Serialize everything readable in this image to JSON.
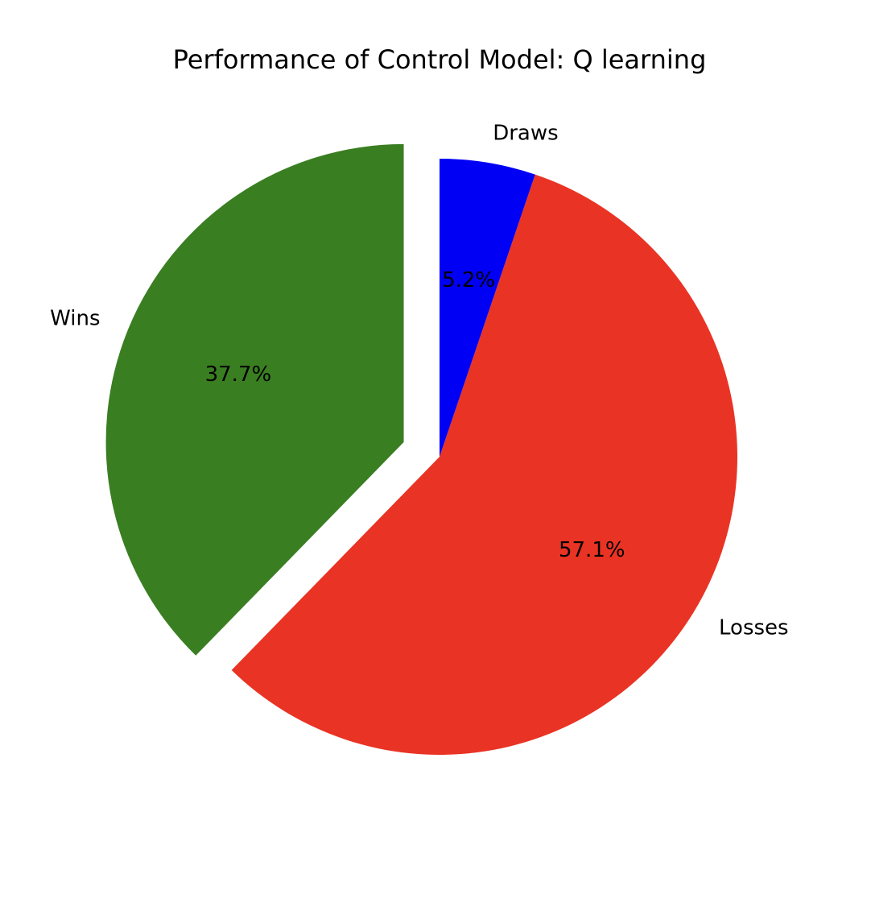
{
  "chart_data": {
    "type": "pie",
    "title": "Performance of Control Model: Q learning",
    "start_angle_deg": 90,
    "direction": "counterclockwise",
    "slices": [
      {
        "label": "Wins",
        "value": 37.7,
        "pct_label": "37.7%",
        "color": "#3a7e22",
        "explode": true
      },
      {
        "label": "Losses",
        "value": 57.1,
        "pct_label": "57.1%",
        "color": "#e93324",
        "explode": false
      },
      {
        "label": "Draws",
        "value": 5.2,
        "pct_label": "5.2%",
        "color": "#0000f5",
        "explode": false
      }
    ],
    "legend": false
  }
}
